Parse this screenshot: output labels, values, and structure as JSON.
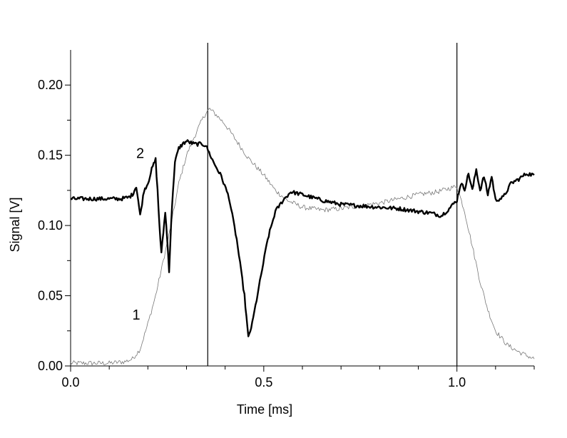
{
  "chart_data": {
    "type": "line",
    "title": "",
    "xlabel": "Time [ms]",
    "ylabel": "Signal [V]",
    "xlim": [
      0.0,
      1.2
    ],
    "ylim": [
      0.0,
      0.225
    ],
    "x_ticks": [
      {
        "value": 0.0,
        "label": "0.0"
      },
      {
        "value": 0.5,
        "label": "0.5"
      },
      {
        "value": 1.0,
        "label": "1.0"
      }
    ],
    "y_ticks": [
      {
        "value": 0.0,
        "label": "0.00"
      },
      {
        "value": 0.05,
        "label": "0.05"
      },
      {
        "value": 0.1,
        "label": "0.10"
      },
      {
        "value": 0.15,
        "label": "0.15"
      },
      {
        "value": 0.2,
        "label": "0.20"
      }
    ],
    "vertical_lines": [
      0.355,
      1.0
    ],
    "grid": false,
    "legend": "none",
    "series": [
      {
        "label": "1",
        "label_pos": [
          0.17,
          0.033
        ],
        "color": "#777777",
        "style": "thin",
        "x": [
          0.0,
          0.05,
          0.1,
          0.14,
          0.16,
          0.18,
          0.2,
          0.22,
          0.24,
          0.26,
          0.28,
          0.3,
          0.32,
          0.34,
          0.35,
          0.36,
          0.38,
          0.4,
          0.43,
          0.46,
          0.5,
          0.53,
          0.56,
          0.6,
          0.65,
          0.7,
          0.75,
          0.8,
          0.85,
          0.9,
          0.95,
          1.0,
          1.02,
          1.04,
          1.06,
          1.08,
          1.1,
          1.13,
          1.16,
          1.2
        ],
        "y": [
          0.002,
          0.002,
          0.002,
          0.003,
          0.005,
          0.012,
          0.03,
          0.05,
          0.075,
          0.1,
          0.13,
          0.15,
          0.163,
          0.175,
          0.18,
          0.183,
          0.178,
          0.172,
          0.16,
          0.148,
          0.136,
          0.125,
          0.118,
          0.113,
          0.111,
          0.112,
          0.114,
          0.116,
          0.119,
          0.122,
          0.124,
          0.128,
          0.11,
          0.085,
          0.06,
          0.04,
          0.025,
          0.015,
          0.01,
          0.005
        ]
      },
      {
        "label": "2",
        "label_pos": [
          0.18,
          0.148
        ],
        "color": "#000000",
        "style": "thick",
        "x": [
          0.0,
          0.05,
          0.1,
          0.13,
          0.15,
          0.16,
          0.17,
          0.175,
          0.18,
          0.19,
          0.2,
          0.21,
          0.22,
          0.225,
          0.23,
          0.235,
          0.24,
          0.245,
          0.25,
          0.255,
          0.26,
          0.265,
          0.27,
          0.28,
          0.29,
          0.3,
          0.32,
          0.34,
          0.35,
          0.37,
          0.39,
          0.41,
          0.43,
          0.45,
          0.46,
          0.47,
          0.49,
          0.51,
          0.53,
          0.55,
          0.57,
          0.6,
          0.65,
          0.7,
          0.75,
          0.8,
          0.85,
          0.9,
          0.93,
          0.96,
          0.98,
          1.0,
          1.01,
          1.02,
          1.03,
          1.04,
          1.05,
          1.06,
          1.07,
          1.08,
          1.09,
          1.1,
          1.12,
          1.14,
          1.16,
          1.18,
          1.2
        ],
        "y": [
          0.119,
          0.119,
          0.119,
          0.119,
          0.12,
          0.122,
          0.128,
          0.118,
          0.107,
          0.125,
          0.13,
          0.14,
          0.147,
          0.125,
          0.1,
          0.08,
          0.095,
          0.11,
          0.09,
          0.068,
          0.1,
          0.125,
          0.145,
          0.155,
          0.158,
          0.16,
          0.158,
          0.158,
          0.157,
          0.145,
          0.135,
          0.12,
          0.09,
          0.05,
          0.02,
          0.03,
          0.06,
          0.09,
          0.11,
          0.118,
          0.124,
          0.122,
          0.118,
          0.115,
          0.114,
          0.113,
          0.112,
          0.11,
          0.109,
          0.107,
          0.112,
          0.118,
          0.13,
          0.126,
          0.137,
          0.125,
          0.14,
          0.125,
          0.135,
          0.122,
          0.135,
          0.118,
          0.12,
          0.13,
          0.133,
          0.137,
          0.136
        ]
      }
    ]
  }
}
